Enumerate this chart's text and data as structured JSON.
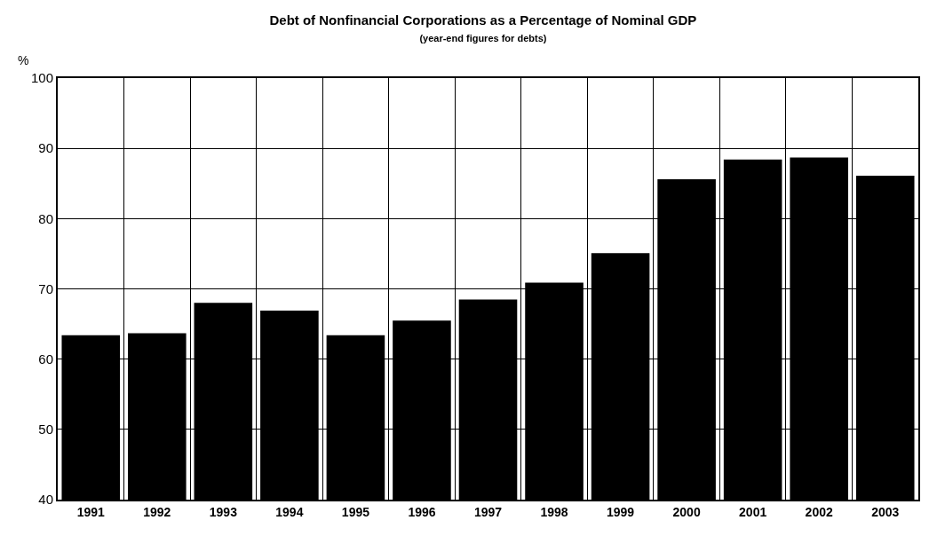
{
  "chart_data": {
    "type": "bar",
    "title": "Debt of Nonfinancial Corporations as a Percentage of Nominal GDP",
    "subtitle": "(year-end figures for debts)",
    "ylabel": "%",
    "categories": [
      "1991",
      "1992",
      "1993",
      "1994",
      "1995",
      "1996",
      "1997",
      "1998",
      "1999",
      "2000",
      "2001",
      "2002",
      "2003"
    ],
    "values": [
      63.4,
      63.7,
      68.0,
      66.9,
      63.4,
      65.5,
      68.5,
      70.9,
      75.1,
      85.6,
      88.4,
      88.7,
      86.1
    ],
    "color": "#000000",
    "ylim": [
      40,
      100
    ],
    "yticks": [
      40,
      50,
      60,
      70,
      80,
      90,
      100
    ],
    "grid": true
  }
}
